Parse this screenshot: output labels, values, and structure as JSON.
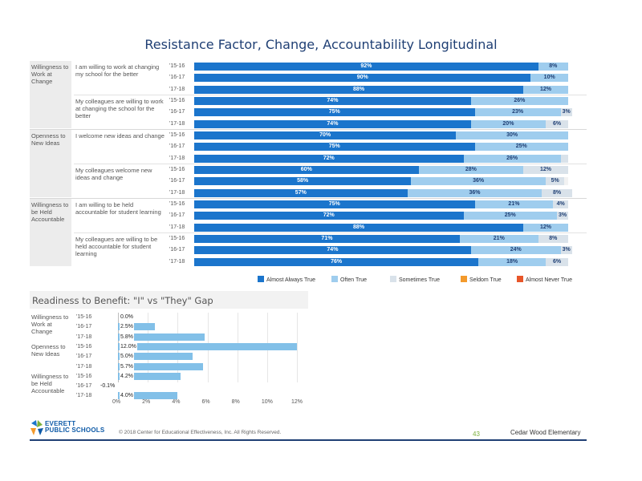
{
  "title": "Resistance Factor, Change, Accountability Longitudinal",
  "colors": {
    "almost_always": "#1b75cc",
    "often": "#9fcdee",
    "sometimes": "#d9e2ea",
    "seldom": "#f39a2c",
    "almost_never": "#e8562a",
    "gap_bar": "#82c0e8"
  },
  "chart_data": [
    {
      "type": "bar",
      "stacked": true,
      "orientation": "horizontal",
      "title": "Resistance Factor, Change, Accountability Longitudinal",
      "series_names": [
        "Almost Always True",
        "Often True",
        "Sometimes True",
        "Seldom True",
        "Almost Never True"
      ],
      "groups": [
        {
          "label": "Willingness to Work at Change",
          "items": [
            {
              "label": "I am willing to work at changing my school for the better",
              "rows": [
                {
                  "year": "'15-16",
                  "values": [
                    92,
                    8,
                    0,
                    0,
                    0
                  ],
                  "labels": [
                    "92%",
                    "8%",
                    "",
                    "",
                    ""
                  ]
                },
                {
                  "year": "'16-17",
                  "values": [
                    90,
                    10,
                    0,
                    0,
                    0
                  ],
                  "labels": [
                    "90%",
                    "10%",
                    "",
                    "",
                    ""
                  ]
                },
                {
                  "year": "'17-18",
                  "values": [
                    88,
                    12,
                    0,
                    0,
                    0
                  ],
                  "labels": [
                    "88%",
                    "12%",
                    "",
                    "",
                    ""
                  ]
                }
              ]
            },
            {
              "label": "My colleagues are willing to work at changing the school for the better",
              "rows": [
                {
                  "year": "'15-16",
                  "values": [
                    74,
                    26,
                    0,
                    0,
                    0
                  ],
                  "labels": [
                    "74%",
                    "26%",
                    "",
                    "",
                    ""
                  ]
                },
                {
                  "year": "'16-17",
                  "values": [
                    75,
                    23,
                    3,
                    0,
                    0
                  ],
                  "labels": [
                    "75%",
                    "23%",
                    "3%",
                    "",
                    ""
                  ]
                },
                {
                  "year": "'17-18",
                  "values": [
                    74,
                    20,
                    6,
                    0,
                    0
                  ],
                  "labels": [
                    "74%",
                    "20%",
                    "6%",
                    "",
                    ""
                  ]
                }
              ]
            }
          ]
        },
        {
          "label": "Openness to New Ideas",
          "items": [
            {
              "label": "I welcome new ideas and change",
              "rows": [
                {
                  "year": "'15-16",
                  "values": [
                    70,
                    30,
                    0,
                    0,
                    0
                  ],
                  "labels": [
                    "70%",
                    "30%",
                    "",
                    "",
                    ""
                  ]
                },
                {
                  "year": "'16-17",
                  "values": [
                    75,
                    25,
                    0,
                    0,
                    0
                  ],
                  "labels": [
                    "75%",
                    "25%",
                    "",
                    "",
                    ""
                  ]
                },
                {
                  "year": "'17-18",
                  "values": [
                    72,
                    26,
                    2,
                    0,
                    0
                  ],
                  "labels": [
                    "72%",
                    "26%",
                    "",
                    "",
                    ""
                  ]
                }
              ]
            },
            {
              "label": "My colleagues welcome new ideas and change",
              "rows": [
                {
                  "year": "'15-16",
                  "values": [
                    60,
                    28,
                    12,
                    0,
                    0
                  ],
                  "labels": [
                    "60%",
                    "28%",
                    "12%",
                    "",
                    ""
                  ]
                },
                {
                  "year": "'16-17",
                  "values": [
                    58,
                    36,
                    5,
                    0,
                    0
                  ],
                  "labels": [
                    "58%",
                    "36%",
                    "5%",
                    "",
                    ""
                  ]
                },
                {
                  "year": "'17-18",
                  "values": [
                    57,
                    36,
                    8,
                    0,
                    0
                  ],
                  "labels": [
                    "57%",
                    "36%",
                    "8%",
                    "",
                    ""
                  ]
                }
              ]
            }
          ]
        },
        {
          "label": "Willingness to be Held Accountable",
          "items": [
            {
              "label": "I am willing to be held accountable for student learning",
              "rows": [
                {
                  "year": "'15-16",
                  "values": [
                    75,
                    21,
                    4,
                    0,
                    0
                  ],
                  "labels": [
                    "75%",
                    "21%",
                    "4%",
                    "",
                    ""
                  ]
                },
                {
                  "year": "'16-17",
                  "values": [
                    72,
                    25,
                    3,
                    0,
                    0
                  ],
                  "labels": [
                    "72%",
                    "25%",
                    "3%",
                    "",
                    ""
                  ]
                },
                {
                  "year": "'17-18",
                  "values": [
                    88,
                    12,
                    0,
                    0,
                    0
                  ],
                  "labels": [
                    "88%",
                    "12%",
                    "",
                    "",
                    ""
                  ]
                }
              ]
            },
            {
              "label": "My colleagues are willing to be held accountable for student learning",
              "rows": [
                {
                  "year": "'15-16",
                  "values": [
                    71,
                    21,
                    8,
                    0,
                    0
                  ],
                  "labels": [
                    "71%",
                    "21%",
                    "8%",
                    "",
                    ""
                  ]
                },
                {
                  "year": "'16-17",
                  "values": [
                    74,
                    24,
                    3,
                    0,
                    0
                  ],
                  "labels": [
                    "74%",
                    "24%",
                    "3%",
                    "",
                    ""
                  ]
                },
                {
                  "year": "'17-18",
                  "values": [
                    76,
                    18,
                    6,
                    0,
                    0
                  ],
                  "labels": [
                    "76%",
                    "18%",
                    "6%",
                    "",
                    ""
                  ]
                }
              ]
            }
          ]
        }
      ],
      "legend": [
        "Almost Always True",
        "Often True",
        "Sometimes True",
        "Seldom True",
        "Almost Never True"
      ],
      "legend_position": "bottom-right",
      "xlim": [
        0,
        100
      ]
    },
    {
      "type": "bar",
      "orientation": "horizontal",
      "title": "Readiness to Benefit: \"I\" vs \"They\" Gap",
      "groups": [
        {
          "label": "Willingness to Work at Change",
          "rows": [
            {
              "year": "'15-16",
              "value": 0.0,
              "label": "0.0%"
            },
            {
              "year": "'16-17",
              "value": 2.5,
              "label": "2.5%"
            },
            {
              "year": "'17-18",
              "value": 5.8,
              "label": "5.8%"
            }
          ]
        },
        {
          "label": "Openness to New Ideas",
          "rows": [
            {
              "year": "'15-16",
              "value": 12.0,
              "label": "12.0%"
            },
            {
              "year": "'16-17",
              "value": 5.0,
              "label": "5.0%"
            },
            {
              "year": "'17-18",
              "value": 5.7,
              "label": "5.7%"
            }
          ]
        },
        {
          "label": "Willingness to be Held Accountable",
          "rows": [
            {
              "year": "'15-16",
              "value": 4.2,
              "label": "4.2%"
            },
            {
              "year": "'16-17",
              "value": -0.1,
              "label": "-0.1%"
            },
            {
              "year": "'17-18",
              "value": 4.0,
              "label": "4.0%"
            }
          ]
        }
      ],
      "x_ticks": [
        "0%",
        "2%",
        "4%",
        "6%",
        "8%",
        "10%",
        "12%"
      ],
      "xlim": [
        0,
        12
      ]
    }
  ],
  "footer": {
    "logo_line1": "EVERETT",
    "logo_line2": "PUBLIC SCHOOLS",
    "copyright": "© 2018 Center for Educational Effectiveness, Inc. All Rights Reserved.",
    "page_number": "43",
    "school": "Cedar Wood Elementary"
  }
}
